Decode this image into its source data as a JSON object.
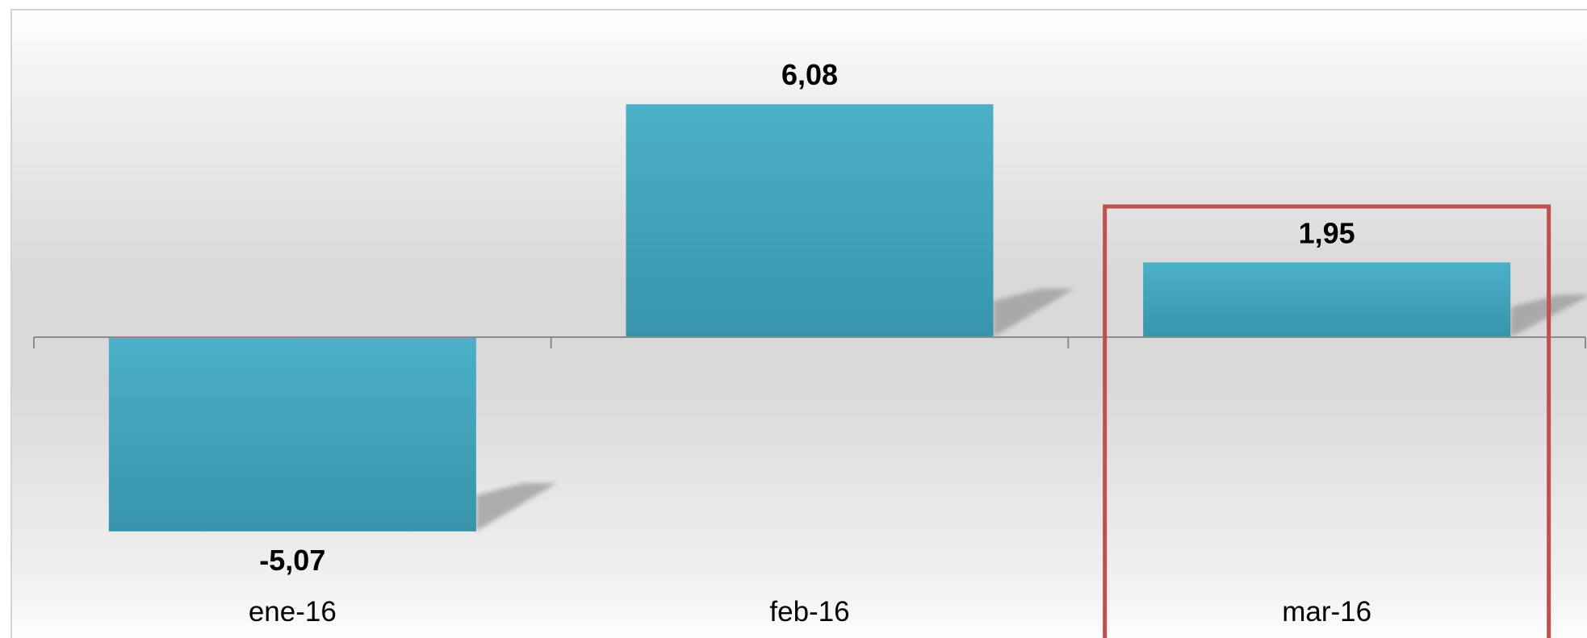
{
  "chart_data": {
    "type": "bar",
    "categories": [
      "ene-16",
      "feb-16",
      "mar-16"
    ],
    "values": [
      -5.07,
      6.08,
      1.95
    ],
    "data_labels": [
      "-5,07",
      "6,08",
      "1,95"
    ],
    "ylim": [
      -7.5,
      9
    ],
    "grid": false,
    "legend": "none",
    "highlighted_category": "mar-16",
    "colors": {
      "bar_top": "#4bb0c8",
      "bar_bottom": "#3794ab",
      "shadow": "#9a9a9a",
      "axis": "#8c8c8c",
      "highlight_box": "#c0504d",
      "background_top": "#ffffff",
      "background_mid": "#d9d9d9",
      "frame": "#d4d4d4",
      "label": "#000000"
    }
  }
}
